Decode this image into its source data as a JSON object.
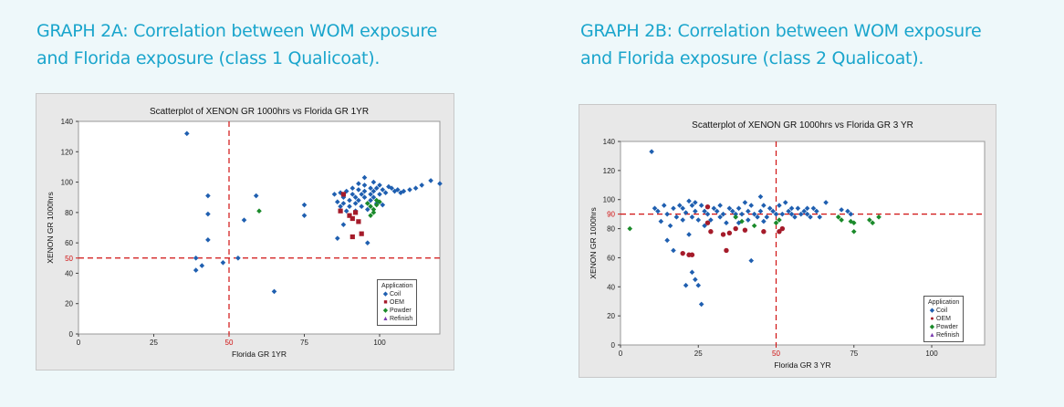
{
  "titles": {
    "a_line1": "GRAPH 2A: Correlation between WOM exposure",
    "a_line2": "and Florida exposure (class 1 Qualicoat).",
    "b_line1": "GRAPH 2B: Correlation between WOM exposure",
    "b_line2": "and Florida exposure (class 2 Qualicoat)."
  },
  "legend": {
    "title": "Application",
    "items": [
      "Coil",
      "OEM",
      "Powder",
      "Refinish"
    ]
  },
  "colors": {
    "Coil": "#1f5fb0",
    "OEM": "#a51b2a",
    "Powder": "#1a8a2a",
    "Refinish": "#7a3bb0",
    "refline": "#d01010",
    "plot_bg": "#ffffff",
    "frame_bg": "#e8e8e8"
  },
  "chart_data": [
    {
      "type": "scatter",
      "title": "Scatterplot of XENON GR 1000hrs vs Florida GR 1YR",
      "xlabel": "Florida GR 1YR",
      "ylabel": "XENON GR 1000hrs",
      "xlim": [
        0,
        120
      ],
      "ylim": [
        0,
        140
      ],
      "xticks": [
        0,
        25,
        50,
        75,
        100
      ],
      "yticks": [
        0,
        20,
        40,
        50,
        60,
        80,
        100,
        120,
        140
      ],
      "ref_lines": {
        "x": 50,
        "y": 50
      },
      "legend_position": "bottom-right",
      "series": [
        {
          "name": "Coil",
          "marker": "diamond",
          "points": [
            [
              36,
              132
            ],
            [
              39,
              50
            ],
            [
              39,
              42
            ],
            [
              41,
              45
            ],
            [
              43,
              91
            ],
            [
              43,
              79
            ],
            [
              43,
              62
            ],
            [
              48,
              47
            ],
            [
              53,
              50
            ],
            [
              55,
              75
            ],
            [
              59,
              91
            ],
            [
              65,
              28
            ],
            [
              75,
              78
            ],
            [
              75,
              85
            ],
            [
              85,
              92
            ],
            [
              86,
              87
            ],
            [
              87,
              93
            ],
            [
              87,
              84
            ],
            [
              88,
              90
            ],
            [
              88,
              86
            ],
            [
              89,
              94
            ],
            [
              89,
              81
            ],
            [
              90,
              88
            ],
            [
              90,
              84
            ],
            [
              91,
              96
            ],
            [
              91,
              92
            ],
            [
              92,
              90
            ],
            [
              92,
              86
            ],
            [
              92,
              81
            ],
            [
              93,
              95
            ],
            [
              93,
              88
            ],
            [
              94,
              92
            ],
            [
              94,
              84
            ],
            [
              95,
              98
            ],
            [
              95,
              94
            ],
            [
              95,
              90
            ],
            [
              96,
              86
            ],
            [
              96,
              82
            ],
            [
              97,
              96
            ],
            [
              97,
              92
            ],
            [
              97,
              88
            ],
            [
              98,
              94
            ],
            [
              98,
              90
            ],
            [
              99,
              96
            ],
            [
              99,
              86
            ],
            [
              100,
              98
            ],
            [
              100,
              92
            ],
            [
              101,
              95
            ],
            [
              102,
              93
            ],
            [
              103,
              97
            ],
            [
              104,
              96
            ],
            [
              105,
              94
            ],
            [
              106,
              95
            ],
            [
              107,
              93
            ],
            [
              108,
              94
            ],
            [
              110,
              95
            ],
            [
              112,
              96
            ],
            [
              114,
              98
            ],
            [
              117,
              101
            ],
            [
              120,
              99
            ],
            [
              95,
              103
            ],
            [
              98,
              100
            ],
            [
              88,
              72
            ],
            [
              86,
              63
            ],
            [
              96,
              60
            ],
            [
              101,
              85
            ],
            [
              93,
              99
            ]
          ]
        },
        {
          "name": "OEM",
          "marker": "square",
          "points": [
            [
              87,
              81
            ],
            [
              88,
              92
            ],
            [
              90,
              78
            ],
            [
              91,
              76
            ],
            [
              92,
              80
            ],
            [
              91,
              64
            ],
            [
              93,
              74
            ],
            [
              94,
              66
            ]
          ]
        },
        {
          "name": "Powder",
          "marker": "diamond",
          "points": [
            [
              60,
              81
            ],
            [
              96,
              86
            ],
            [
              97,
              84
            ],
            [
              98,
              82
            ],
            [
              98,
              80
            ],
            [
              99,
              88
            ],
            [
              99,
              85
            ],
            [
              100,
              87
            ],
            [
              97,
              78
            ]
          ]
        }
      ]
    },
    {
      "type": "scatter",
      "title": "Scatterplot of XENON GR 1000hrs vs Florida GR 3 YR",
      "xlabel": "Florida GR 3 YR",
      "ylabel": "XENON GR 1000hrs",
      "xlim": [
        0,
        117
      ],
      "ylim": [
        0,
        140
      ],
      "xticks": [
        0,
        25,
        50,
        75,
        100
      ],
      "yticks": [
        0,
        20,
        40,
        60,
        80,
        90,
        100,
        120,
        140
      ],
      "ref_lines": {
        "x": 50,
        "y": 90
      },
      "legend_position": "bottom-right",
      "series": [
        {
          "name": "Coil",
          "marker": "diamond",
          "points": [
            [
              10,
              133
            ],
            [
              11,
              94
            ],
            [
              12,
              92
            ],
            [
              13,
              85
            ],
            [
              14,
              96
            ],
            [
              15,
              90
            ],
            [
              15,
              72
            ],
            [
              16,
              82
            ],
            [
              17,
              94
            ],
            [
              17,
              65
            ],
            [
              18,
              88
            ],
            [
              19,
              96
            ],
            [
              20,
              94
            ],
            [
              20,
              86
            ],
            [
              21,
              91
            ],
            [
              21,
              41
            ],
            [
              22,
              99
            ],
            [
              22,
              76
            ],
            [
              23,
              96
            ],
            [
              23,
              88
            ],
            [
              23,
              50
            ],
            [
              24,
              92
            ],
            [
              24,
              45
            ],
            [
              25,
              86
            ],
            [
              25,
              41
            ],
            [
              26,
              96
            ],
            [
              26,
              28
            ],
            [
              27,
              92
            ],
            [
              27,
              82
            ],
            [
              28,
              90
            ],
            [
              29,
              86
            ],
            [
              30,
              94
            ],
            [
              31,
              92
            ],
            [
              32,
              88
            ],
            [
              33,
              90
            ],
            [
              34,
              84
            ],
            [
              35,
              94
            ],
            [
              36,
              92
            ],
            [
              37,
              88
            ],
            [
              38,
              94
            ],
            [
              38,
              84
            ],
            [
              39,
              90
            ],
            [
              40,
              98
            ],
            [
              41,
              92
            ],
            [
              41,
              86
            ],
            [
              42,
              96
            ],
            [
              42,
              58
            ],
            [
              43,
              90
            ],
            [
              44,
              88
            ],
            [
              45,
              102
            ],
            [
              45,
              92
            ],
            [
              46,
              96
            ],
            [
              47,
              88
            ],
            [
              48,
              94
            ],
            [
              49,
              92
            ],
            [
              50,
              90
            ],
            [
              51,
              96
            ],
            [
              52,
              90
            ],
            [
              53,
              98
            ],
            [
              54,
              92
            ],
            [
              55,
              94
            ],
            [
              56,
              88
            ],
            [
              57,
              94
            ],
            [
              58,
              90
            ],
            [
              59,
              92
            ],
            [
              60,
              90
            ],
            [
              61,
              88
            ],
            [
              62,
              94
            ],
            [
              63,
              92
            ],
            [
              64,
              88
            ],
            [
              66,
              98
            ],
            [
              71,
              93
            ],
            [
              73,
              92
            ],
            [
              74,
              90
            ],
            [
              24,
              98
            ],
            [
              32,
              96
            ],
            [
              37,
              90
            ],
            [
              46,
              85
            ],
            [
              55,
              90
            ],
            [
              60,
              94
            ]
          ]
        },
        {
          "name": "OEM",
          "marker": "circle",
          "points": [
            [
              20,
              63
            ],
            [
              22,
              62
            ],
            [
              23,
              62
            ],
            [
              28,
              95
            ],
            [
              28,
              84
            ],
            [
              29,
              78
            ],
            [
              33,
              76
            ],
            [
              34,
              65
            ],
            [
              35,
              77
            ],
            [
              37,
              80
            ],
            [
              40,
              79
            ],
            [
              46,
              78
            ],
            [
              52,
              80
            ],
            [
              51,
              78
            ]
          ]
        },
        {
          "name": "Powder",
          "marker": "diamond",
          "points": [
            [
              3,
              80
            ],
            [
              37,
              88
            ],
            [
              39,
              85
            ],
            [
              43,
              82
            ],
            [
              50,
              84
            ],
            [
              51,
              86
            ],
            [
              70,
              88
            ],
            [
              71,
              86
            ],
            [
              74,
              85
            ],
            [
              75,
              84
            ],
            [
              75,
              78
            ],
            [
              80,
              86
            ],
            [
              81,
              84
            ],
            [
              83,
              88
            ]
          ]
        }
      ]
    }
  ]
}
